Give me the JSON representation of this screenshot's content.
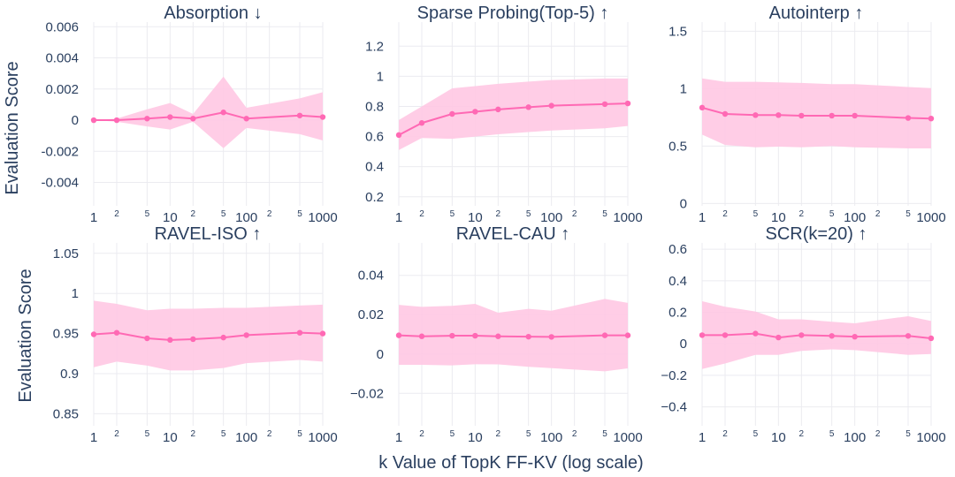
{
  "figure": {
    "ylabel": "Evaluation Score",
    "xlabel": "k Value of TopK FF-KV (log scale)"
  },
  "colors": {
    "line": "#ff69b4",
    "band": "#ffc8e3",
    "text": "#2a3f5f",
    "grid": "#ebebf0"
  },
  "x_ticks": {
    "major": [
      {
        "value": 1,
        "label": "1"
      },
      {
        "value": 10,
        "label": "10"
      },
      {
        "value": 100,
        "label": "100"
      },
      {
        "value": 1000,
        "label": "1000"
      }
    ],
    "minor": [
      {
        "value": 2,
        "label": "2"
      },
      {
        "value": 5,
        "label": "5"
      },
      {
        "value": 20,
        "label": "2"
      },
      {
        "value": 50,
        "label": "5"
      },
      {
        "value": 200,
        "label": "2"
      },
      {
        "value": 500,
        "label": "5"
      }
    ]
  },
  "chart_data": [
    {
      "type": "line",
      "title": "Absorption ↓",
      "x": [
        1,
        2,
        5,
        10,
        20,
        50,
        100,
        500,
        1000
      ],
      "series": [
        {
          "name": "mean",
          "values": [
            0.0,
            0.0,
            0.0001,
            0.0002,
            0.0001,
            0.0005,
            0.0001,
            0.0003,
            0.0002
          ]
        }
      ],
      "band_upper": [
        0.0,
        0.0001,
        0.0007,
        0.0011,
        0.0004,
        0.0028,
        0.0008,
        0.0014,
        0.0018
      ],
      "band_lower": [
        0.0,
        -0.0001,
        -0.0004,
        -0.0006,
        -0.0001,
        -0.0018,
        -0.0005,
        -0.0009,
        -0.0013
      ],
      "ylim": [
        -0.0055,
        0.0063
      ],
      "yticks": [
        {
          "value": -0.004,
          "label": "-0.004"
        },
        {
          "value": -0.002,
          "label": "-0.002"
        },
        {
          "value": 0,
          "label": "0"
        },
        {
          "value": 0.002,
          "label": "0.002"
        },
        {
          "value": 0.004,
          "label": "0.004"
        },
        {
          "value": 0.006,
          "label": "0.006"
        }
      ]
    },
    {
      "type": "line",
      "title": "Sparse Probing(Top-5) ↑",
      "x": [
        1,
        2,
        5,
        10,
        20,
        50,
        100,
        500,
        1000
      ],
      "series": [
        {
          "name": "mean",
          "values": [
            0.61,
            0.69,
            0.75,
            0.765,
            0.78,
            0.795,
            0.805,
            0.815,
            0.82
          ]
        }
      ],
      "band_upper": [
        0.71,
        0.8,
        0.92,
        0.935,
        0.95,
        0.965,
        0.975,
        0.985,
        0.985
      ],
      "band_lower": [
        0.51,
        0.59,
        0.585,
        0.6,
        0.615,
        0.63,
        0.64,
        0.655,
        0.67
      ],
      "ylim": [
        0.14,
        1.36
      ],
      "yticks": [
        {
          "value": 0.2,
          "label": "0.2"
        },
        {
          "value": 0.4,
          "label": "0.4"
        },
        {
          "value": 0.6,
          "label": "0.6"
        },
        {
          "value": 0.8,
          "label": "0.8"
        },
        {
          "value": 1.0,
          "label": "1"
        },
        {
          "value": 1.2,
          "label": "1.2"
        }
      ]
    },
    {
      "type": "line",
      "title": "Autointerp ↑",
      "x": [
        1,
        2,
        5,
        10,
        20,
        50,
        100,
        500,
        1000
      ],
      "series": [
        {
          "name": "mean",
          "values": [
            0.835,
            0.78,
            0.77,
            0.77,
            0.765,
            0.765,
            0.765,
            0.745,
            0.74
          ]
        }
      ],
      "band_upper": [
        1.09,
        1.06,
        1.06,
        1.055,
        1.05,
        1.04,
        1.04,
        1.015,
        1.005
      ],
      "band_lower": [
        0.6,
        0.51,
        0.49,
        0.495,
        0.49,
        0.5,
        0.49,
        0.48,
        0.48
      ],
      "ylim": [
        -0.02,
        1.58
      ],
      "yticks": [
        {
          "value": 0,
          "label": "0"
        },
        {
          "value": 0.5,
          "label": "0.5"
        },
        {
          "value": 1.0,
          "label": "1"
        },
        {
          "value": 1.5,
          "label": "1.5"
        }
      ]
    },
    {
      "type": "line",
      "title": "RAVEL-ISO ↑",
      "x": [
        1,
        2,
        5,
        10,
        20,
        50,
        100,
        500,
        1000
      ],
      "series": [
        {
          "name": "mean",
          "values": [
            0.949,
            0.951,
            0.944,
            0.942,
            0.943,
            0.945,
            0.948,
            0.951,
            0.95
          ]
        }
      ],
      "band_upper": [
        0.991,
        0.987,
        0.979,
        0.981,
        0.981,
        0.982,
        0.982,
        0.985,
        0.986
      ],
      "band_lower": [
        0.908,
        0.915,
        0.91,
        0.904,
        0.904,
        0.907,
        0.913,
        0.917,
        0.915
      ],
      "ylim": [
        0.835,
        1.063
      ],
      "yticks": [
        {
          "value": 0.85,
          "label": "0.85"
        },
        {
          "value": 0.9,
          "label": "0.9"
        },
        {
          "value": 0.95,
          "label": "0.95"
        },
        {
          "value": 1.0,
          "label": "1"
        },
        {
          "value": 1.05,
          "label": "1.05"
        }
      ]
    },
    {
      "type": "line",
      "title": "RAVEL-CAU ↑",
      "x": [
        1,
        2,
        5,
        10,
        20,
        50,
        100,
        500,
        1000
      ],
      "series": [
        {
          "name": "mean",
          "values": [
            0.0095,
            0.009,
            0.0093,
            0.0093,
            0.009,
            0.0088,
            0.0087,
            0.0095,
            0.0095
          ]
        }
      ],
      "band_upper": [
        0.025,
        0.024,
        0.0245,
        0.0255,
        0.021,
        0.023,
        0.022,
        0.028,
        0.026
      ],
      "band_lower": [
        -0.0055,
        -0.0055,
        -0.0058,
        -0.0052,
        -0.0053,
        -0.0065,
        -0.0072,
        -0.0088,
        -0.0073
      ],
      "ylim": [
        -0.0365,
        0.0565
      ],
      "yticks": [
        {
          "value": -0.02,
          "label": "−0.02"
        },
        {
          "value": 0,
          "label": "0"
        },
        {
          "value": 0.02,
          "label": "0.02"
        },
        {
          "value": 0.04,
          "label": "0.04"
        }
      ]
    },
    {
      "type": "line",
      "title": "SCR(k=20) ↑",
      "x": [
        1,
        2,
        5,
        10,
        20,
        50,
        100,
        500,
        1000
      ],
      "series": [
        {
          "name": "mean",
          "values": [
            0.055,
            0.055,
            0.065,
            0.04,
            0.055,
            0.05,
            0.045,
            0.05,
            0.035
          ]
        }
      ],
      "band_upper": [
        0.27,
        0.235,
        0.205,
        0.155,
        0.155,
        0.14,
        0.13,
        0.175,
        0.145
      ],
      "band_lower": [
        -0.16,
        -0.125,
        -0.07,
        -0.07,
        -0.045,
        -0.035,
        -0.04,
        -0.07,
        -0.065
      ],
      "ylim": [
        -0.52,
        0.64
      ],
      "yticks": [
        {
          "value": -0.4,
          "label": "−0.4"
        },
        {
          "value": -0.2,
          "label": "−0.2"
        },
        {
          "value": 0,
          "label": "0"
        },
        {
          "value": 0.2,
          "label": "0.2"
        },
        {
          "value": 0.4,
          "label": "0.4"
        },
        {
          "value": 0.6,
          "label": "0.6"
        }
      ]
    }
  ]
}
